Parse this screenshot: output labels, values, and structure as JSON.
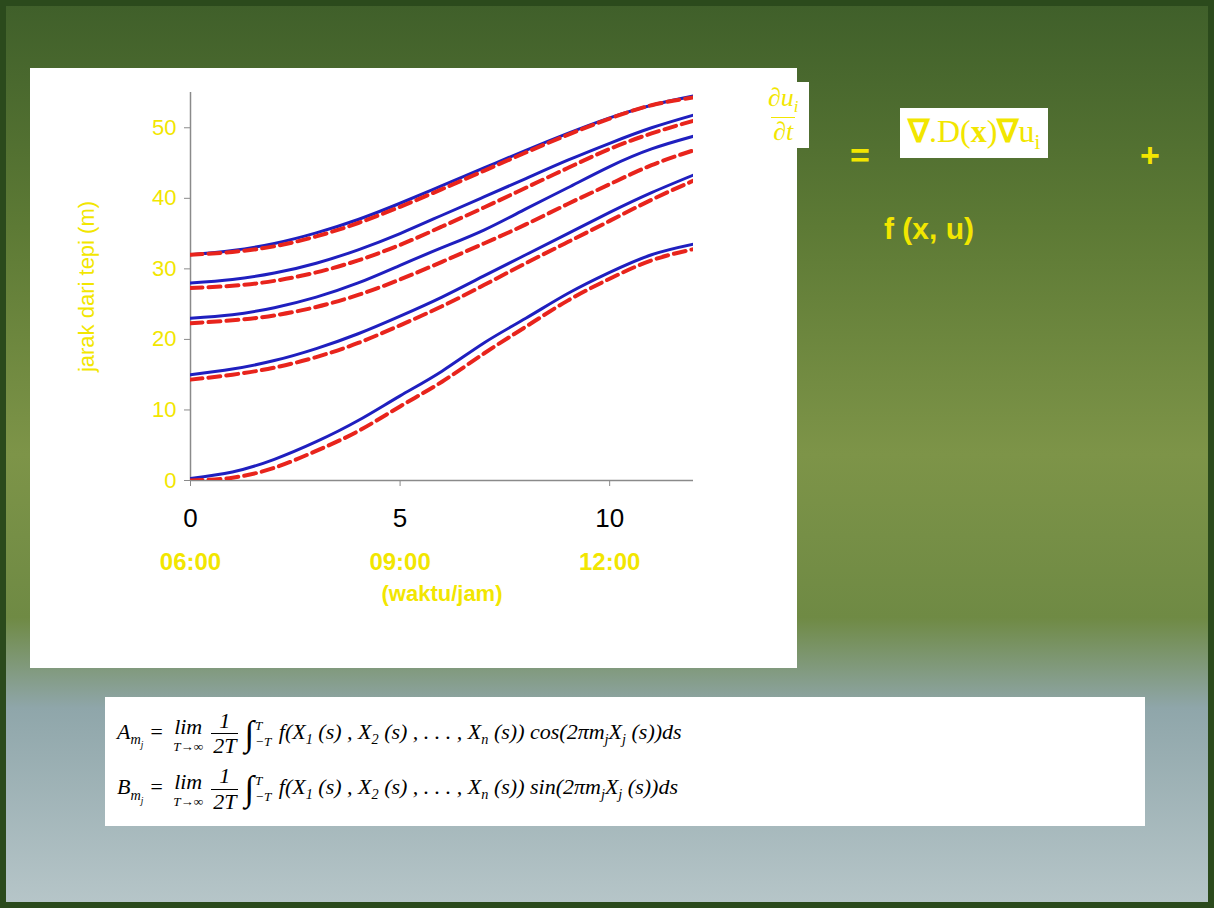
{
  "chart_data": {
    "type": "line",
    "xlabel": "(waktu/jam)",
    "ylabel": "jarak dari tepi (m)",
    "x": [
      0,
      1,
      2,
      3,
      4,
      5,
      6,
      7,
      8,
      9,
      10,
      11,
      12
    ],
    "xlim": [
      0,
      12
    ],
    "ylim": [
      0,
      55
    ],
    "xticks": [
      0,
      5,
      10
    ],
    "x_time_ticks": [
      {
        "value": 0,
        "label": "06:00"
      },
      {
        "value": 5,
        "label": "09:00"
      },
      {
        "value": 10,
        "label": "12:00"
      }
    ],
    "yticks": [
      0,
      10,
      20,
      30,
      40,
      50
    ],
    "grid": false,
    "series": [
      {
        "color": "#1f1fbf",
        "line_style": "solid",
        "values": [
          0.3,
          1.2,
          3,
          5.5,
          8.5,
          12,
          15.5,
          19.5,
          23,
          26.5,
          29.5,
          32,
          33.5
        ]
      },
      {
        "color": "#e8241c",
        "line_style": "dashed",
        "values": [
          0,
          0.4,
          1.8,
          4.2,
          7,
          10.5,
          14,
          18,
          21.8,
          25.5,
          28.6,
          31.2,
          32.8
        ]
      },
      {
        "color": "#1f1fbf",
        "line_style": "solid",
        "values": [
          15,
          15.8,
          17,
          18.7,
          20.8,
          23.3,
          26,
          29,
          32,
          35,
          38,
          40.8,
          43.3
        ]
      },
      {
        "color": "#e8241c",
        "line_style": "dashed",
        "values": [
          14.3,
          15,
          16,
          17.5,
          19.5,
          22,
          24.7,
          27.7,
          30.8,
          33.8,
          36.8,
          39.8,
          42.5
        ]
      },
      {
        "color": "#1f1fbf",
        "line_style": "solid",
        "values": [
          23,
          23.5,
          24.5,
          26,
          28,
          30.5,
          33,
          35.5,
          38.5,
          41.5,
          44.5,
          47,
          48.8
        ]
      },
      {
        "color": "#e8241c",
        "line_style": "dashed",
        "values": [
          22.3,
          22.7,
          23.4,
          24.6,
          26.3,
          28.5,
          31,
          33.6,
          36.3,
          39.2,
          42,
          44.7,
          46.8
        ]
      },
      {
        "color": "#1f1fbf",
        "line_style": "solid",
        "values": [
          28,
          28.5,
          29.4,
          30.8,
          32.7,
          35,
          37.6,
          40.2,
          42.8,
          45.4,
          47.8,
          50,
          51.8
        ]
      },
      {
        "color": "#e8241c",
        "line_style": "dashed",
        "values": [
          27.3,
          27.6,
          28.3,
          29.5,
          31.2,
          33.4,
          36,
          38.7,
          41.5,
          44.3,
          47,
          49.2,
          51
        ]
      },
      {
        "color": "#1f1fbf",
        "line_style": "solid",
        "values": [
          32,
          32.6,
          33.6,
          35.1,
          37,
          39.3,
          41.8,
          44.3,
          46.8,
          49.2,
          51.4,
          53.2,
          54.5
        ]
      },
      {
        "color": "#e8241c",
        "line_style": "dashed",
        "values": [
          32,
          32.4,
          33.2,
          34.6,
          36.5,
          38.8,
          41.3,
          43.9,
          46.5,
          49,
          51.3,
          53.2,
          54.3
        ]
      }
    ]
  },
  "equations": {
    "pde": {
      "lhs": [
        {
          "num": [
            "∂u",
            {
              "sub": [
                "i"
              ]
            }
          ],
          "den": [
            "∂t"
          ]
        }
      ],
      "equals": "=",
      "rhs": [
        {
          "b": "∇"
        },
        ".D(",
        {
          "b": "x"
        },
        ")",
        {
          "b": "∇"
        },
        "u",
        {
          "sub": [
            "i"
          ]
        }
      ],
      "plus": "+",
      "term": "f (x, u)"
    },
    "fourier": [
      [
        "A",
        {
          "sub": [
            "m",
            {
              "sub": [
                "j"
              ]
            }
          ]
        },
        " = ",
        {
          "op": "lim",
          "under": "T→∞"
        },
        {
          "num": [
            "1"
          ],
          "den": [
            "2T"
          ]
        },
        {
          "int": "∫",
          "upper": "T",
          "lower": "−T"
        },
        " f(X",
        {
          "sub": [
            "1"
          ]
        },
        " (s) , X",
        {
          "sub": [
            "2"
          ]
        },
        " (s) , . . . , X",
        {
          "sub": [
            "n"
          ]
        },
        " (s)) cos(2πm",
        {
          "sub": [
            "j"
          ]
        },
        "X",
        {
          "sub": [
            "j"
          ]
        },
        " (s))ds"
      ],
      [
        "B",
        {
          "sub": [
            "m",
            {
              "sub": [
                "j"
              ]
            }
          ]
        },
        " = ",
        {
          "op": "lim",
          "under": "T→∞"
        },
        {
          "num": [
            "1"
          ],
          "den": [
            "2T"
          ]
        },
        {
          "int": "∫",
          "upper": "T",
          "lower": "−T"
        },
        " f(X",
        {
          "sub": [
            "1"
          ]
        },
        " (s) , X",
        {
          "sub": [
            "2"
          ]
        },
        " (s) , . . . , X",
        {
          "sub": [
            "n"
          ]
        },
        " (s)) sin(2πm",
        {
          "sub": [
            "j"
          ]
        },
        "X",
        {
          "sub": [
            "j"
          ]
        },
        " (s))ds"
      ]
    ]
  }
}
